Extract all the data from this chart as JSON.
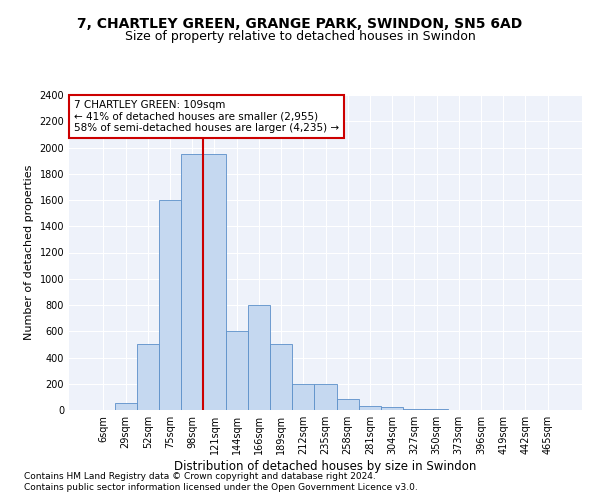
{
  "title1": "7, CHARTLEY GREEN, GRANGE PARK, SWINDON, SN5 6AD",
  "title2": "Size of property relative to detached houses in Swindon",
  "xlabel": "Distribution of detached houses by size in Swindon",
  "ylabel": "Number of detached properties",
  "footnote1": "Contains HM Land Registry data © Crown copyright and database right 2024.",
  "footnote2": "Contains public sector information licensed under the Open Government Licence v3.0.",
  "annotation_line1": "7 CHARTLEY GREEN: 109sqm",
  "annotation_line2": "← 41% of detached houses are smaller (2,955)",
  "annotation_line3": "58% of semi-detached houses are larger (4,235) →",
  "bar_color": "#c5d8f0",
  "bar_edge_color": "#5b8fc9",
  "vline_color": "#cc0000",
  "annotation_box_color": "#cc0000",
  "background_color": "#eef2fa",
  "categories": [
    "6sqm",
    "29sqm",
    "52sqm",
    "75sqm",
    "98sqm",
    "121sqm",
    "144sqm",
    "166sqm",
    "189sqm",
    "212sqm",
    "235sqm",
    "258sqm",
    "281sqm",
    "304sqm",
    "327sqm",
    "350sqm",
    "373sqm",
    "396sqm",
    "419sqm",
    "442sqm",
    "465sqm"
  ],
  "values": [
    0,
    50,
    500,
    1600,
    1950,
    1950,
    600,
    800,
    500,
    200,
    200,
    85,
    30,
    20,
    5,
    5,
    0,
    0,
    0,
    0,
    0
  ],
  "ylim": [
    0,
    2400
  ],
  "yticks": [
    0,
    200,
    400,
    600,
    800,
    1000,
    1200,
    1400,
    1600,
    1800,
    2000,
    2200,
    2400
  ],
  "vline_x_index": 4.5,
  "title1_fontsize": 10,
  "title2_fontsize": 9,
  "xlabel_fontsize": 8.5,
  "ylabel_fontsize": 8,
  "tick_fontsize": 7,
  "annotation_fontsize": 7.5,
  "footnote_fontsize": 6.5
}
